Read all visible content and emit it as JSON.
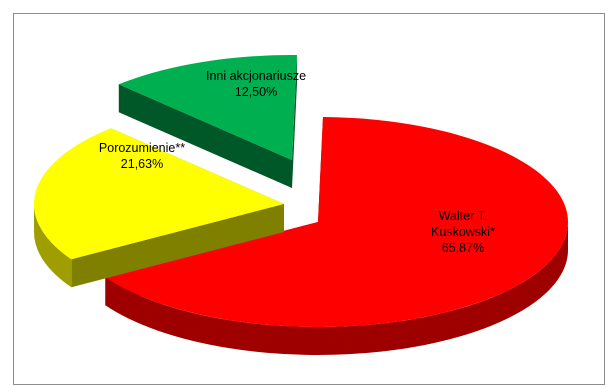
{
  "chart_data": {
    "type": "pie",
    "style": "3d-exploded",
    "slices": [
      {
        "label": "Walter T. Kuskowski*",
        "label_lines": [
          "Walter T.",
          "Kuskowski*"
        ],
        "value_text": "65,87%",
        "value": 65.87,
        "color": "#ff0000"
      },
      {
        "label": "Porozumienie**",
        "label_lines": [
          "Porozumienie**"
        ],
        "value_text": "21,63%",
        "value": 21.63,
        "color": "#ffff00"
      },
      {
        "label": "Inni akcjonariusze",
        "label_lines": [
          "Inni akcjonariusze"
        ],
        "value_text": "12,50%",
        "value": 12.5,
        "color": "#00b050"
      }
    ]
  }
}
